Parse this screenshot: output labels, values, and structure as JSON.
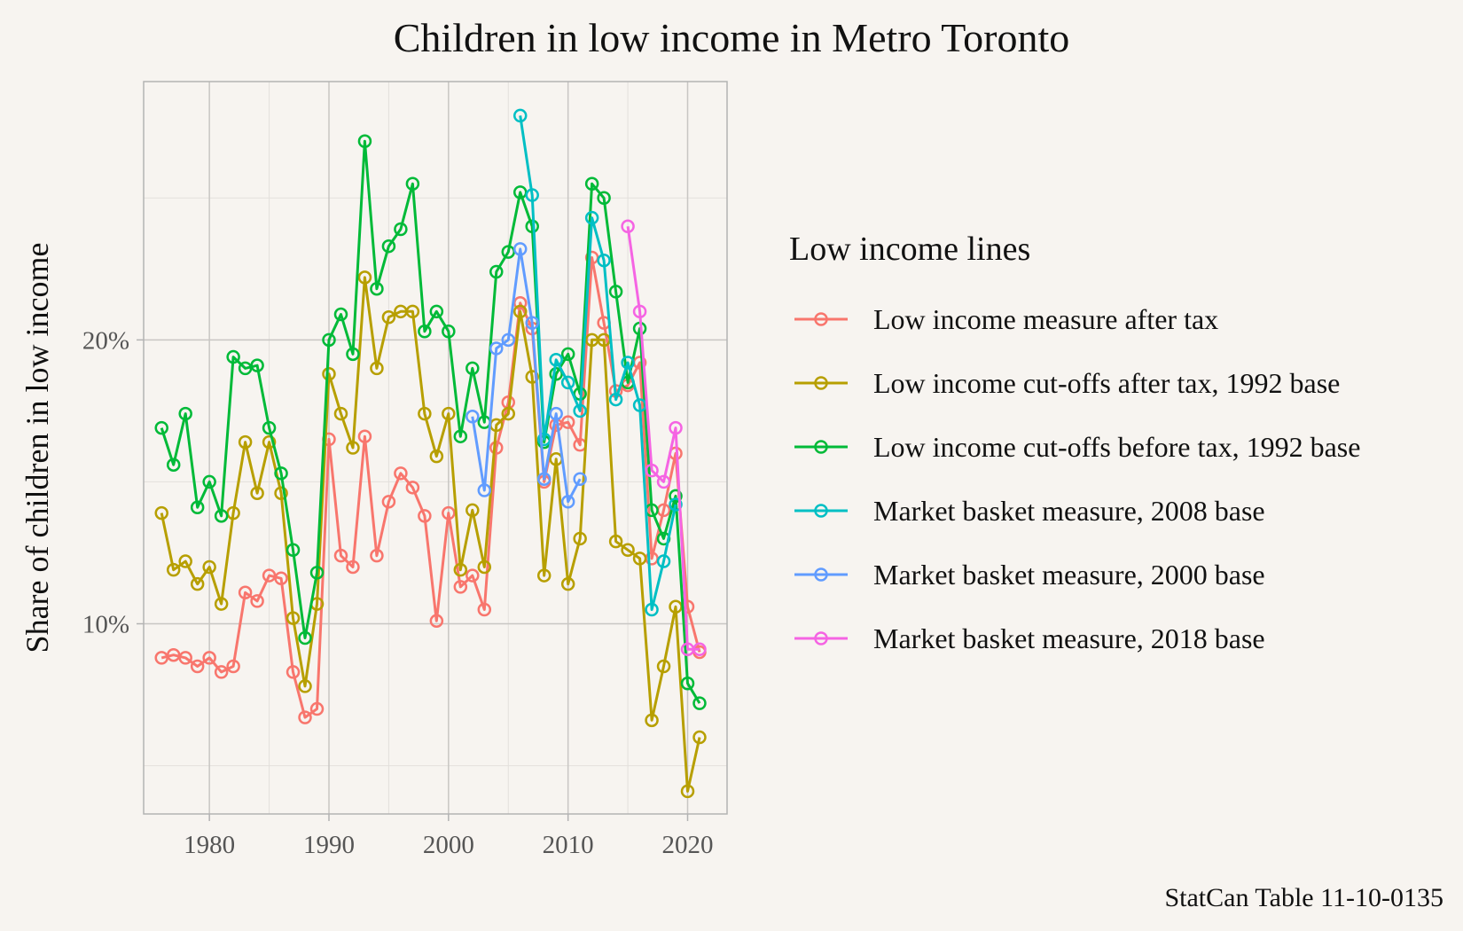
{
  "chart_data": {
    "type": "line",
    "title": "Children in low income in Metro Toronto",
    "xlabel": "",
    "ylabel": "Share of children in low income",
    "caption": "StatCan Table 11-10-0135",
    "legend_title": "Low income lines",
    "legend_position": "right",
    "xlim": [
      1974.5,
      2023.3
    ],
    "ylim": [
      3.3,
      29.1
    ],
    "x_ticks": [
      1980,
      1990,
      2000,
      2010,
      2020
    ],
    "y_ticks": [
      10,
      20
    ],
    "y_tick_labels": [
      "10%",
      "20%"
    ],
    "grid": true,
    "series": [
      {
        "name": "Low income measure after tax",
        "color": "#f8766d",
        "x": [
          1976,
          1977,
          1978,
          1979,
          1980,
          1981,
          1982,
          1983,
          1984,
          1985,
          1986,
          1987,
          1988,
          1989,
          1990,
          1991,
          1992,
          1993,
          1994,
          1995,
          1996,
          1997,
          1998,
          1999,
          2000,
          2001,
          2002,
          2003,
          2004,
          2005,
          2006,
          2007,
          2008,
          2009,
          2010,
          2011,
          2012,
          2013,
          2014,
          2015,
          2016,
          2017,
          2018,
          2019,
          2020,
          2021
        ],
        "y": [
          8.8,
          8.9,
          8.8,
          8.5,
          8.8,
          8.3,
          8.5,
          11.1,
          10.8,
          11.7,
          11.6,
          8.3,
          6.7,
          7.0,
          16.5,
          12.4,
          12.0,
          16.6,
          12.4,
          14.3,
          15.3,
          14.8,
          13.8,
          10.1,
          13.9,
          11.3,
          11.7,
          10.5,
          16.2,
          17.8,
          21.3,
          20.4,
          15.0,
          17.0,
          17.1,
          16.3,
          22.9,
          20.6,
          18.2,
          18.4,
          19.2,
          12.3,
          14.0,
          16.0,
          10.6,
          9.0
        ]
      },
      {
        "name": "Low income cut-offs after tax, 1992 base",
        "color": "#b79f00",
        "x": [
          1976,
          1977,
          1978,
          1979,
          1980,
          1981,
          1982,
          1983,
          1984,
          1985,
          1986,
          1987,
          1988,
          1989,
          1990,
          1991,
          1992,
          1993,
          1994,
          1995,
          1996,
          1997,
          1998,
          1999,
          2000,
          2001,
          2002,
          2003,
          2004,
          2005,
          2006,
          2007,
          2008,
          2009,
          2010,
          2011,
          2012,
          2013,
          2014,
          2015,
          2016,
          2017,
          2018,
          2019,
          2020,
          2021
        ],
        "y": [
          13.9,
          11.9,
          12.2,
          11.4,
          12.0,
          10.7,
          13.9,
          16.4,
          14.6,
          16.4,
          14.6,
          10.2,
          7.8,
          10.7,
          18.8,
          17.4,
          16.2,
          22.2,
          19.0,
          20.8,
          21.0,
          21.0,
          17.4,
          15.9,
          17.4,
          11.9,
          14.0,
          12.0,
          17.0,
          17.4,
          21.0,
          18.7,
          11.7,
          15.8,
          11.4,
          13.0,
          20.0,
          20.0,
          12.9,
          12.6,
          12.3,
          6.6,
          8.5,
          10.6,
          4.1,
          6.0
        ]
      },
      {
        "name": "Low income cut-offs before tax, 1992 base",
        "color": "#00ba38",
        "x": [
          1976,
          1977,
          1978,
          1979,
          1980,
          1981,
          1982,
          1983,
          1984,
          1985,
          1986,
          1987,
          1988,
          1989,
          1990,
          1991,
          1992,
          1993,
          1994,
          1995,
          1996,
          1997,
          1998,
          1999,
          2000,
          2001,
          2002,
          2003,
          2004,
          2005,
          2006,
          2007,
          2008,
          2009,
          2010,
          2011,
          2012,
          2013,
          2014,
          2015,
          2016,
          2017,
          2018,
          2019,
          2020,
          2021
        ],
        "y": [
          16.9,
          15.6,
          17.4,
          14.1,
          15.0,
          13.8,
          19.4,
          19.0,
          19.1,
          16.9,
          15.3,
          12.6,
          9.5,
          11.8,
          20.0,
          20.9,
          19.5,
          27.0,
          21.8,
          23.3,
          23.9,
          25.5,
          20.3,
          21.0,
          20.3,
          16.6,
          19.0,
          17.1,
          22.4,
          23.1,
          25.2,
          24.0,
          16.4,
          18.8,
          19.5,
          18.1,
          25.5,
          25.0,
          21.7,
          18.5,
          20.4,
          14.0,
          13.0,
          14.5,
          7.9,
          7.2
        ]
      },
      {
        "name": "Market basket measure, 2008 base",
        "color": "#00bfc4",
        "x": [
          2006,
          2007,
          2008,
          2009,
          2010,
          2011,
          2012,
          2013,
          2014,
          2015,
          2016,
          2017,
          2018,
          2019
        ],
        "y": [
          27.9,
          25.1,
          16.5,
          19.3,
          18.5,
          17.5,
          24.3,
          22.8,
          17.9,
          19.2,
          17.7,
          10.5,
          12.2,
          14.2
        ]
      },
      {
        "name": "Market basket measure, 2000 base",
        "color": "#619cff",
        "x": [
          2002,
          2003,
          2004,
          2005,
          2006,
          2007,
          2008,
          2009,
          2010,
          2011
        ],
        "y": [
          17.3,
          14.7,
          19.7,
          20.0,
          23.2,
          20.6,
          15.1,
          17.4,
          14.3,
          15.1
        ]
      },
      {
        "name": "Market basket measure, 2018 base",
        "color": "#f564e3",
        "x": [
          2015,
          2016,
          2017,
          2018,
          2019,
          2020,
          2021
        ],
        "y": [
          24.0,
          21.0,
          15.4,
          15.0,
          16.9,
          9.1,
          9.1
        ]
      }
    ]
  }
}
